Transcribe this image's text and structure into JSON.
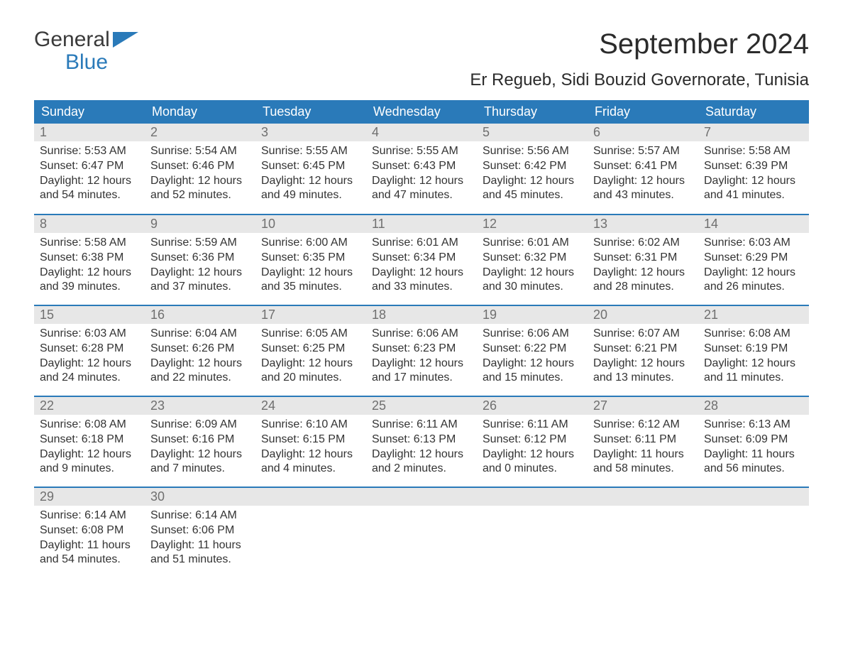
{
  "logo": {
    "line1": "General",
    "line2": "Blue",
    "accent_color": "#2a7ab9"
  },
  "title": "September 2024",
  "location": "Er Regueb, Sidi Bouzid Governorate, Tunisia",
  "colors": {
    "header_bg": "#2a7ab9",
    "header_text": "#ffffff",
    "daynum_bg": "#e7e7e7",
    "daynum_text": "#6f6f6f",
    "body_text": "#333333",
    "background": "#ffffff"
  },
  "typography": {
    "title_fontsize": 40,
    "location_fontsize": 24,
    "weekday_fontsize": 18,
    "daynum_fontsize": 18,
    "body_fontsize": 16,
    "font_family": "Arial"
  },
  "layout": {
    "columns": 7,
    "rows": 5,
    "row_separator_color": "#2a7ab9"
  },
  "weekdays": [
    "Sunday",
    "Monday",
    "Tuesday",
    "Wednesday",
    "Thursday",
    "Friday",
    "Saturday"
  ],
  "labels": {
    "sunrise": "Sunrise:",
    "sunset": "Sunset:",
    "daylight": "Daylight:"
  },
  "days": [
    {
      "n": "1",
      "sunrise": "5:53 AM",
      "sunset": "6:47 PM",
      "daylight": "12 hours and 54 minutes."
    },
    {
      "n": "2",
      "sunrise": "5:54 AM",
      "sunset": "6:46 PM",
      "daylight": "12 hours and 52 minutes."
    },
    {
      "n": "3",
      "sunrise": "5:55 AM",
      "sunset": "6:45 PM",
      "daylight": "12 hours and 49 minutes."
    },
    {
      "n": "4",
      "sunrise": "5:55 AM",
      "sunset": "6:43 PM",
      "daylight": "12 hours and 47 minutes."
    },
    {
      "n": "5",
      "sunrise": "5:56 AM",
      "sunset": "6:42 PM",
      "daylight": "12 hours and 45 minutes."
    },
    {
      "n": "6",
      "sunrise": "5:57 AM",
      "sunset": "6:41 PM",
      "daylight": "12 hours and 43 minutes."
    },
    {
      "n": "7",
      "sunrise": "5:58 AM",
      "sunset": "6:39 PM",
      "daylight": "12 hours and 41 minutes."
    },
    {
      "n": "8",
      "sunrise": "5:58 AM",
      "sunset": "6:38 PM",
      "daylight": "12 hours and 39 minutes."
    },
    {
      "n": "9",
      "sunrise": "5:59 AM",
      "sunset": "6:36 PM",
      "daylight": "12 hours and 37 minutes."
    },
    {
      "n": "10",
      "sunrise": "6:00 AM",
      "sunset": "6:35 PM",
      "daylight": "12 hours and 35 minutes."
    },
    {
      "n": "11",
      "sunrise": "6:01 AM",
      "sunset": "6:34 PM",
      "daylight": "12 hours and 33 minutes."
    },
    {
      "n": "12",
      "sunrise": "6:01 AM",
      "sunset": "6:32 PM",
      "daylight": "12 hours and 30 minutes."
    },
    {
      "n": "13",
      "sunrise": "6:02 AM",
      "sunset": "6:31 PM",
      "daylight": "12 hours and 28 minutes."
    },
    {
      "n": "14",
      "sunrise": "6:03 AM",
      "sunset": "6:29 PM",
      "daylight": "12 hours and 26 minutes."
    },
    {
      "n": "15",
      "sunrise": "6:03 AM",
      "sunset": "6:28 PM",
      "daylight": "12 hours and 24 minutes."
    },
    {
      "n": "16",
      "sunrise": "6:04 AM",
      "sunset": "6:26 PM",
      "daylight": "12 hours and 22 minutes."
    },
    {
      "n": "17",
      "sunrise": "6:05 AM",
      "sunset": "6:25 PM",
      "daylight": "12 hours and 20 minutes."
    },
    {
      "n": "18",
      "sunrise": "6:06 AM",
      "sunset": "6:23 PM",
      "daylight": "12 hours and 17 minutes."
    },
    {
      "n": "19",
      "sunrise": "6:06 AM",
      "sunset": "6:22 PM",
      "daylight": "12 hours and 15 minutes."
    },
    {
      "n": "20",
      "sunrise": "6:07 AM",
      "sunset": "6:21 PM",
      "daylight": "12 hours and 13 minutes."
    },
    {
      "n": "21",
      "sunrise": "6:08 AM",
      "sunset": "6:19 PM",
      "daylight": "12 hours and 11 minutes."
    },
    {
      "n": "22",
      "sunrise": "6:08 AM",
      "sunset": "6:18 PM",
      "daylight": "12 hours and 9 minutes."
    },
    {
      "n": "23",
      "sunrise": "6:09 AM",
      "sunset": "6:16 PM",
      "daylight": "12 hours and 7 minutes."
    },
    {
      "n": "24",
      "sunrise": "6:10 AM",
      "sunset": "6:15 PM",
      "daylight": "12 hours and 4 minutes."
    },
    {
      "n": "25",
      "sunrise": "6:11 AM",
      "sunset": "6:13 PM",
      "daylight": "12 hours and 2 minutes."
    },
    {
      "n": "26",
      "sunrise": "6:11 AM",
      "sunset": "6:12 PM",
      "daylight": "12 hours and 0 minutes."
    },
    {
      "n": "27",
      "sunrise": "6:12 AM",
      "sunset": "6:11 PM",
      "daylight": "11 hours and 58 minutes."
    },
    {
      "n": "28",
      "sunrise": "6:13 AM",
      "sunset": "6:09 PM",
      "daylight": "11 hours and 56 minutes."
    },
    {
      "n": "29",
      "sunrise": "6:14 AM",
      "sunset": "6:08 PM",
      "daylight": "11 hours and 54 minutes."
    },
    {
      "n": "30",
      "sunrise": "6:14 AM",
      "sunset": "6:06 PM",
      "daylight": "11 hours and 51 minutes."
    }
  ]
}
